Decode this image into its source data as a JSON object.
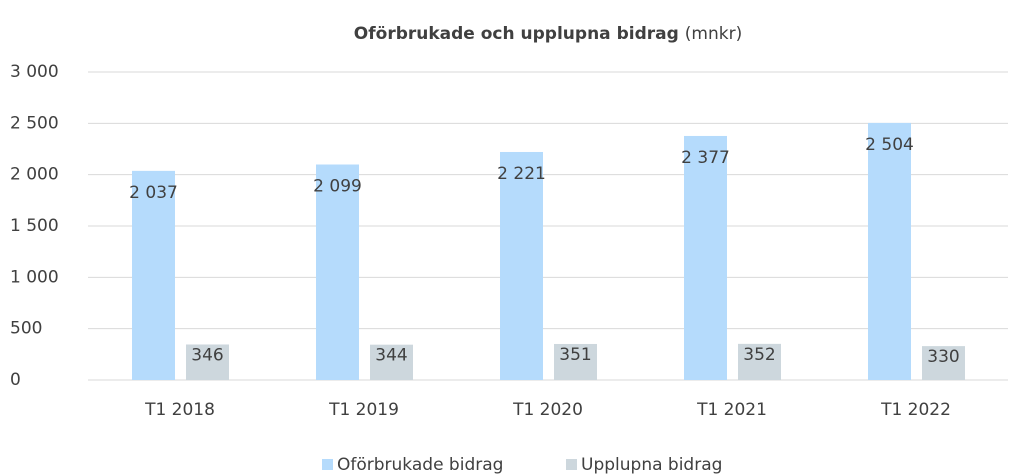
{
  "chart_data": {
    "type": "bar",
    "title": "Oförbrukade och upplupna bidrag",
    "unit": "(mnkr)",
    "categories": [
      "T1 2018",
      "T1 2019",
      "T1 2020",
      "T1 2021",
      "T1 2022"
    ],
    "series": [
      {
        "name": "Oförbrukade bidrag",
        "color": "#b5dbfc",
        "values": [
          2037,
          2099,
          2221,
          2377,
          2504
        ],
        "value_labels": [
          "2 037",
          "2 099",
          "2 221",
          "2 377",
          "2 504"
        ]
      },
      {
        "name": "Upplupna bidrag",
        "color": "#cdd7dd",
        "values": [
          346,
          344,
          351,
          352,
          330
        ]
      }
    ],
    "ylim": [
      0,
      3000
    ],
    "yticks": [
      0,
      500,
      {
        "value": 1000,
        "label": "1 000"
      },
      {
        "value": 1500,
        "label": "1 500"
      },
      {
        "value": 2000,
        "label": "2 000"
      },
      {
        "value": 2500,
        "label": "2 500"
      },
      {
        "value": 3000,
        "label": "3 000"
      }
    ],
    "grid": true,
    "legend": "bottom"
  }
}
